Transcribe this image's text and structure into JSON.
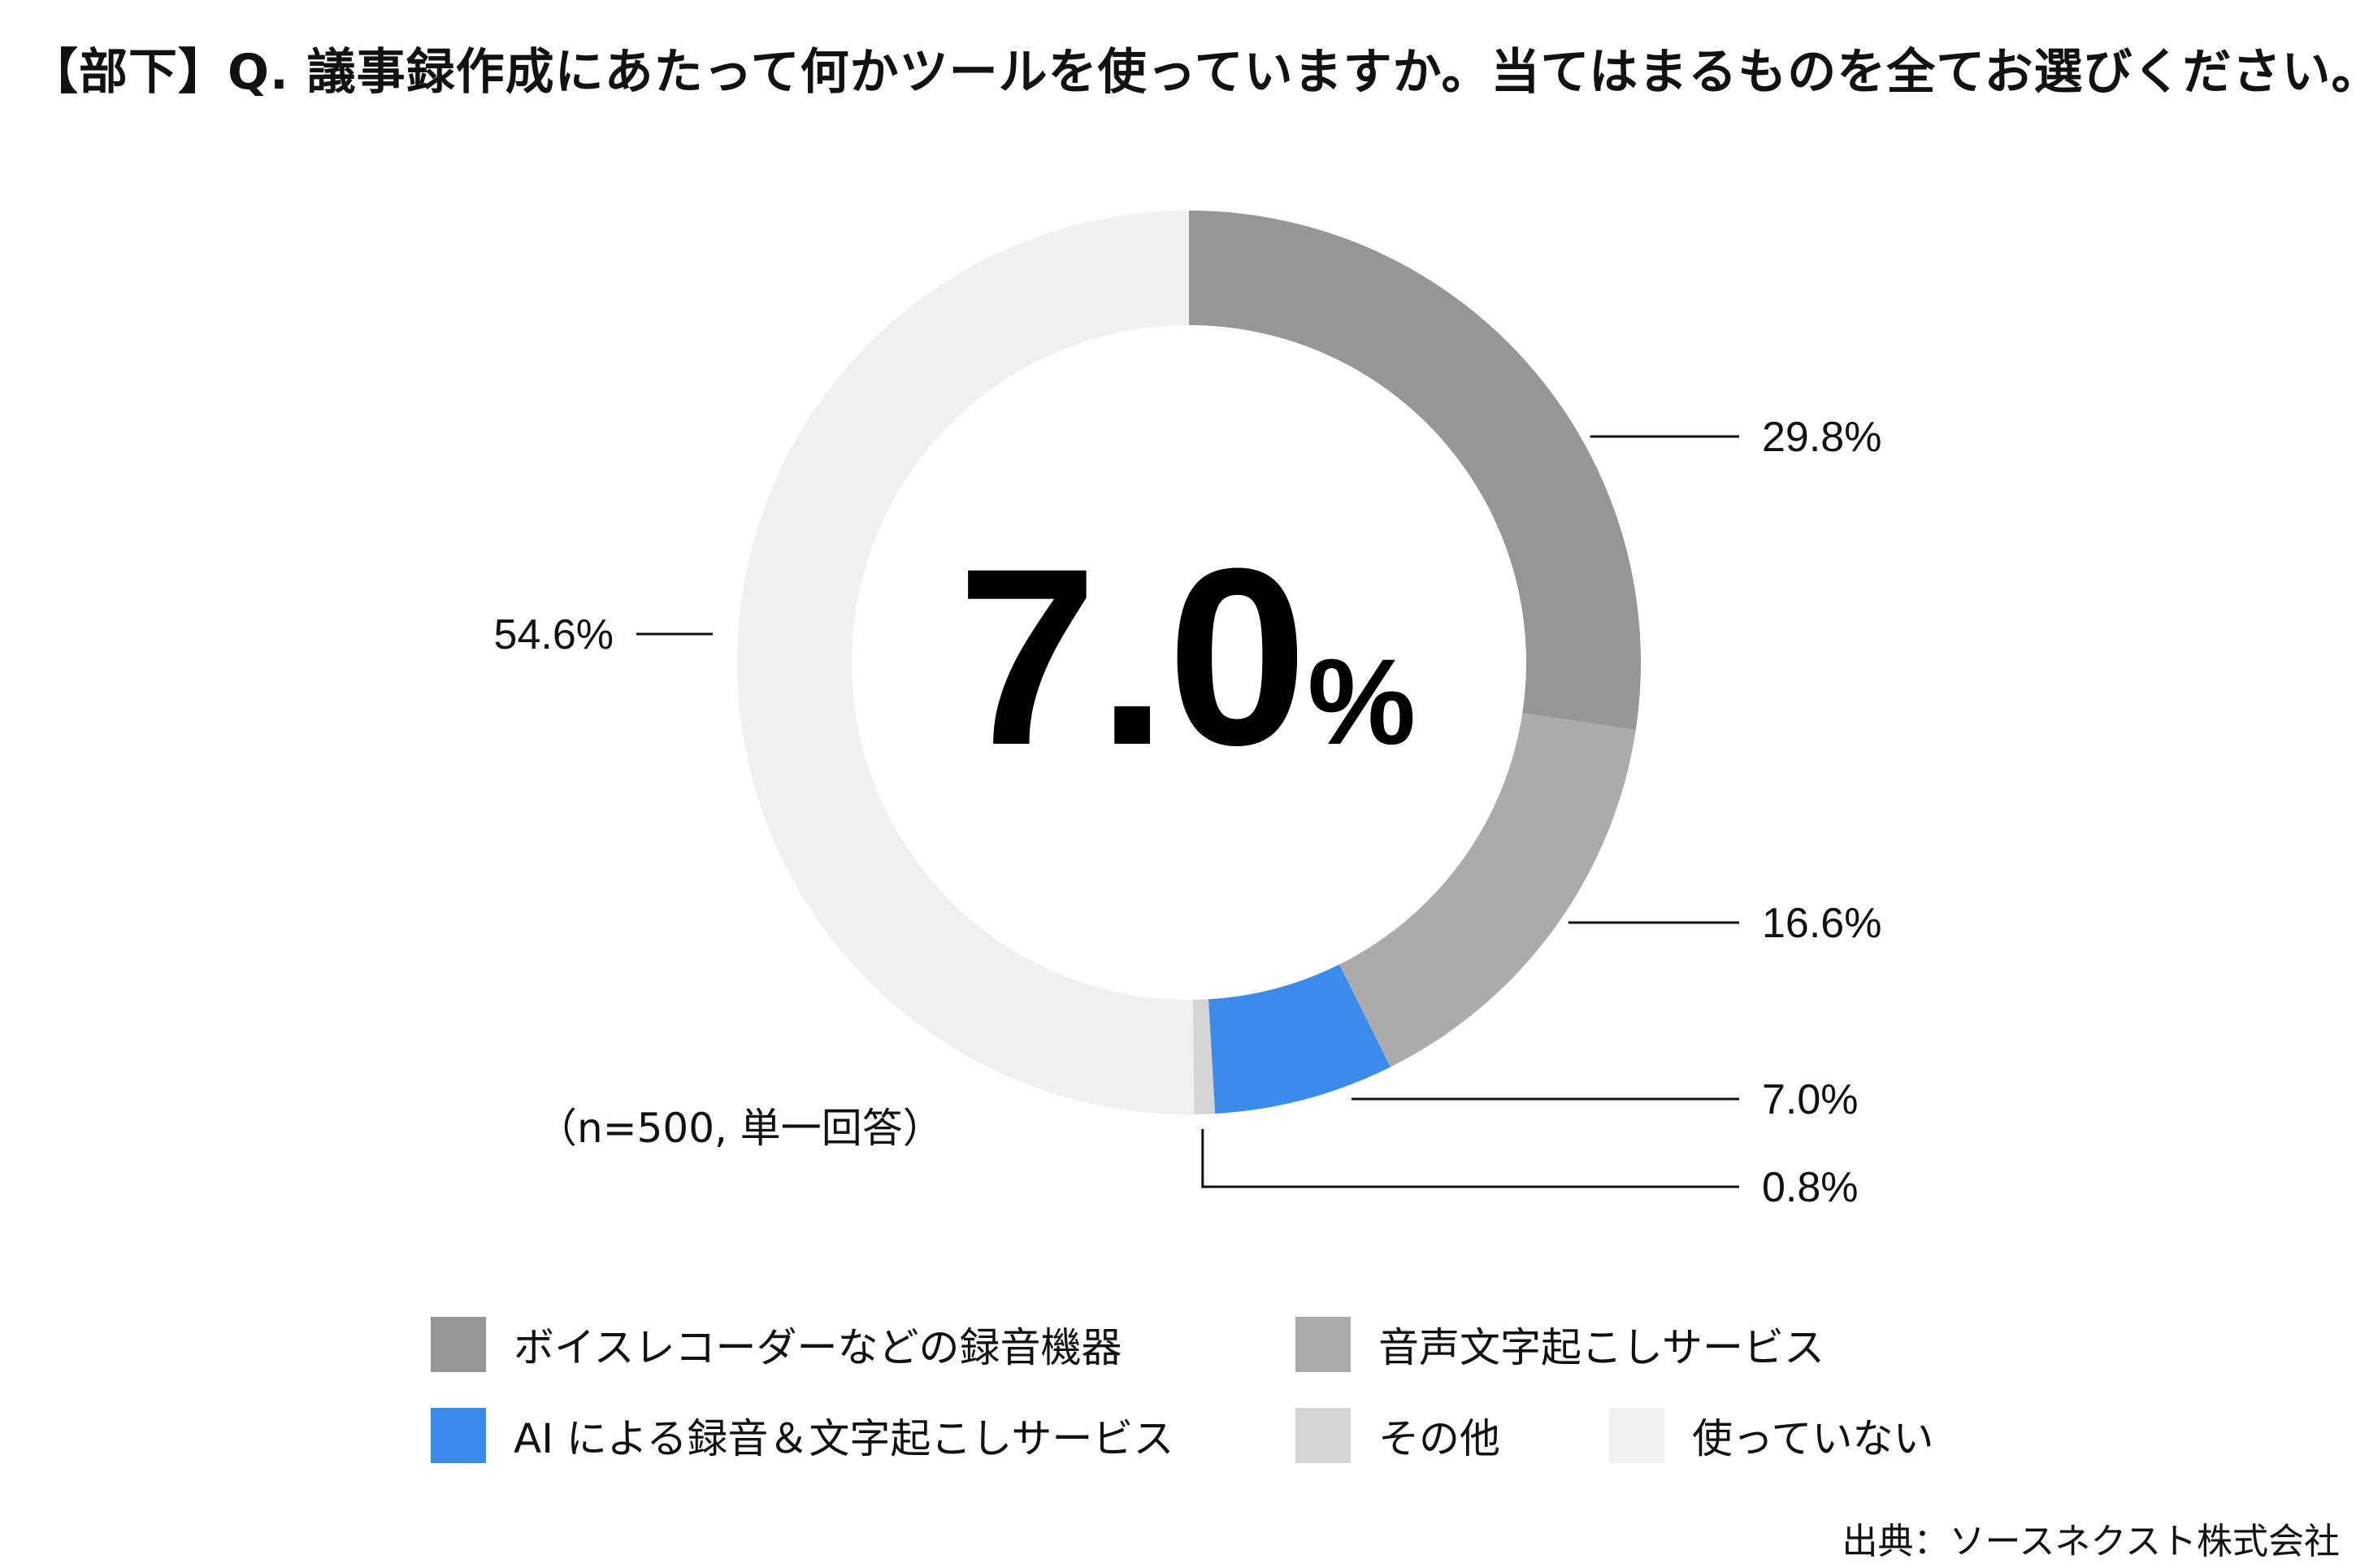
{
  "title": "【部下】Q. 議事録作成にあたって何かツールを使っていますか。当てはまるものを全てお選びください。",
  "center_value": "7.0",
  "center_unit": "%",
  "sample_note": "（n=500, 単一回答）",
  "source": "出典：ソースネクスト株式会社",
  "chart_data": {
    "type": "pie",
    "donut": true,
    "title": "【部下】Q. 議事録作成にあたって何かツールを使っていますか。当てはまるものを全てお選びください。",
    "categories": [
      "ボイスレコーダーなどの録音機器",
      "音声文字起こしサービス",
      "AI による録音＆文字起こしサービス",
      "その他",
      "使っていない"
    ],
    "values": [
      29.8,
      16.6,
      7.0,
      0.8,
      54.6
    ],
    "value_labels": [
      "29.8%",
      "16.6%",
      "7.0%",
      "0.8%",
      "54.6%"
    ],
    "colors": [
      "#969696",
      "#ababab",
      "#3b8beb",
      "#d5d5d5",
      "#f0f0f0"
    ],
    "unit": "%",
    "legend_position": "bottom",
    "start_angle": "12 o'clock, clockwise"
  }
}
